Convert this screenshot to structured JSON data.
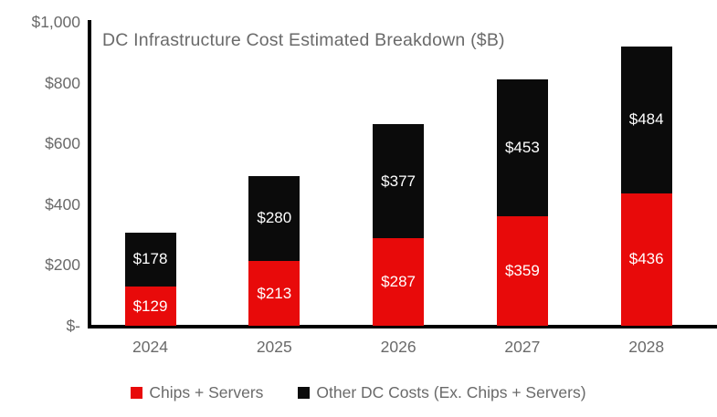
{
  "colors": {
    "background": "#ffffff",
    "axis": "#000000",
    "muted_text": "#6a6a6a",
    "bar_label_text": "#ffffff",
    "chips_servers_red": "#e80a0a",
    "other_dc_black": "#0b0b0b"
  },
  "chart_data": {
    "type": "bar",
    "stacked": true,
    "title": "DC Infrastructure Cost Estimated Breakdown ($B)",
    "categories": [
      "2024",
      "2025",
      "2026",
      "2027",
      "2028"
    ],
    "series": [
      {
        "name": "Chips + Servers",
        "color": "#e80a0a",
        "values": [
          129,
          213,
          287,
          359,
          436
        ],
        "data_labels": [
          "$129",
          "$213",
          "$287",
          "$359",
          "$436"
        ]
      },
      {
        "name": "Other DC Costs (Ex. Chips + Servers)",
        "color": "#0b0b0b",
        "values": [
          178,
          280,
          377,
          453,
          484
        ],
        "data_labels": [
          "$178",
          "$280",
          "$377",
          "$453",
          "$484"
        ]
      }
    ],
    "ylim": [
      0,
      1000
    ],
    "y_ticks": [
      {
        "value": 1000,
        "label": "$1,000"
      },
      {
        "value": 800,
        "label": "$800"
      },
      {
        "value": 600,
        "label": "$600"
      },
      {
        "value": 400,
        "label": "$400"
      },
      {
        "value": 200,
        "label": "$200"
      },
      {
        "value": 0,
        "label": "$-"
      }
    ],
    "grid": false,
    "legend_position": "bottom"
  }
}
